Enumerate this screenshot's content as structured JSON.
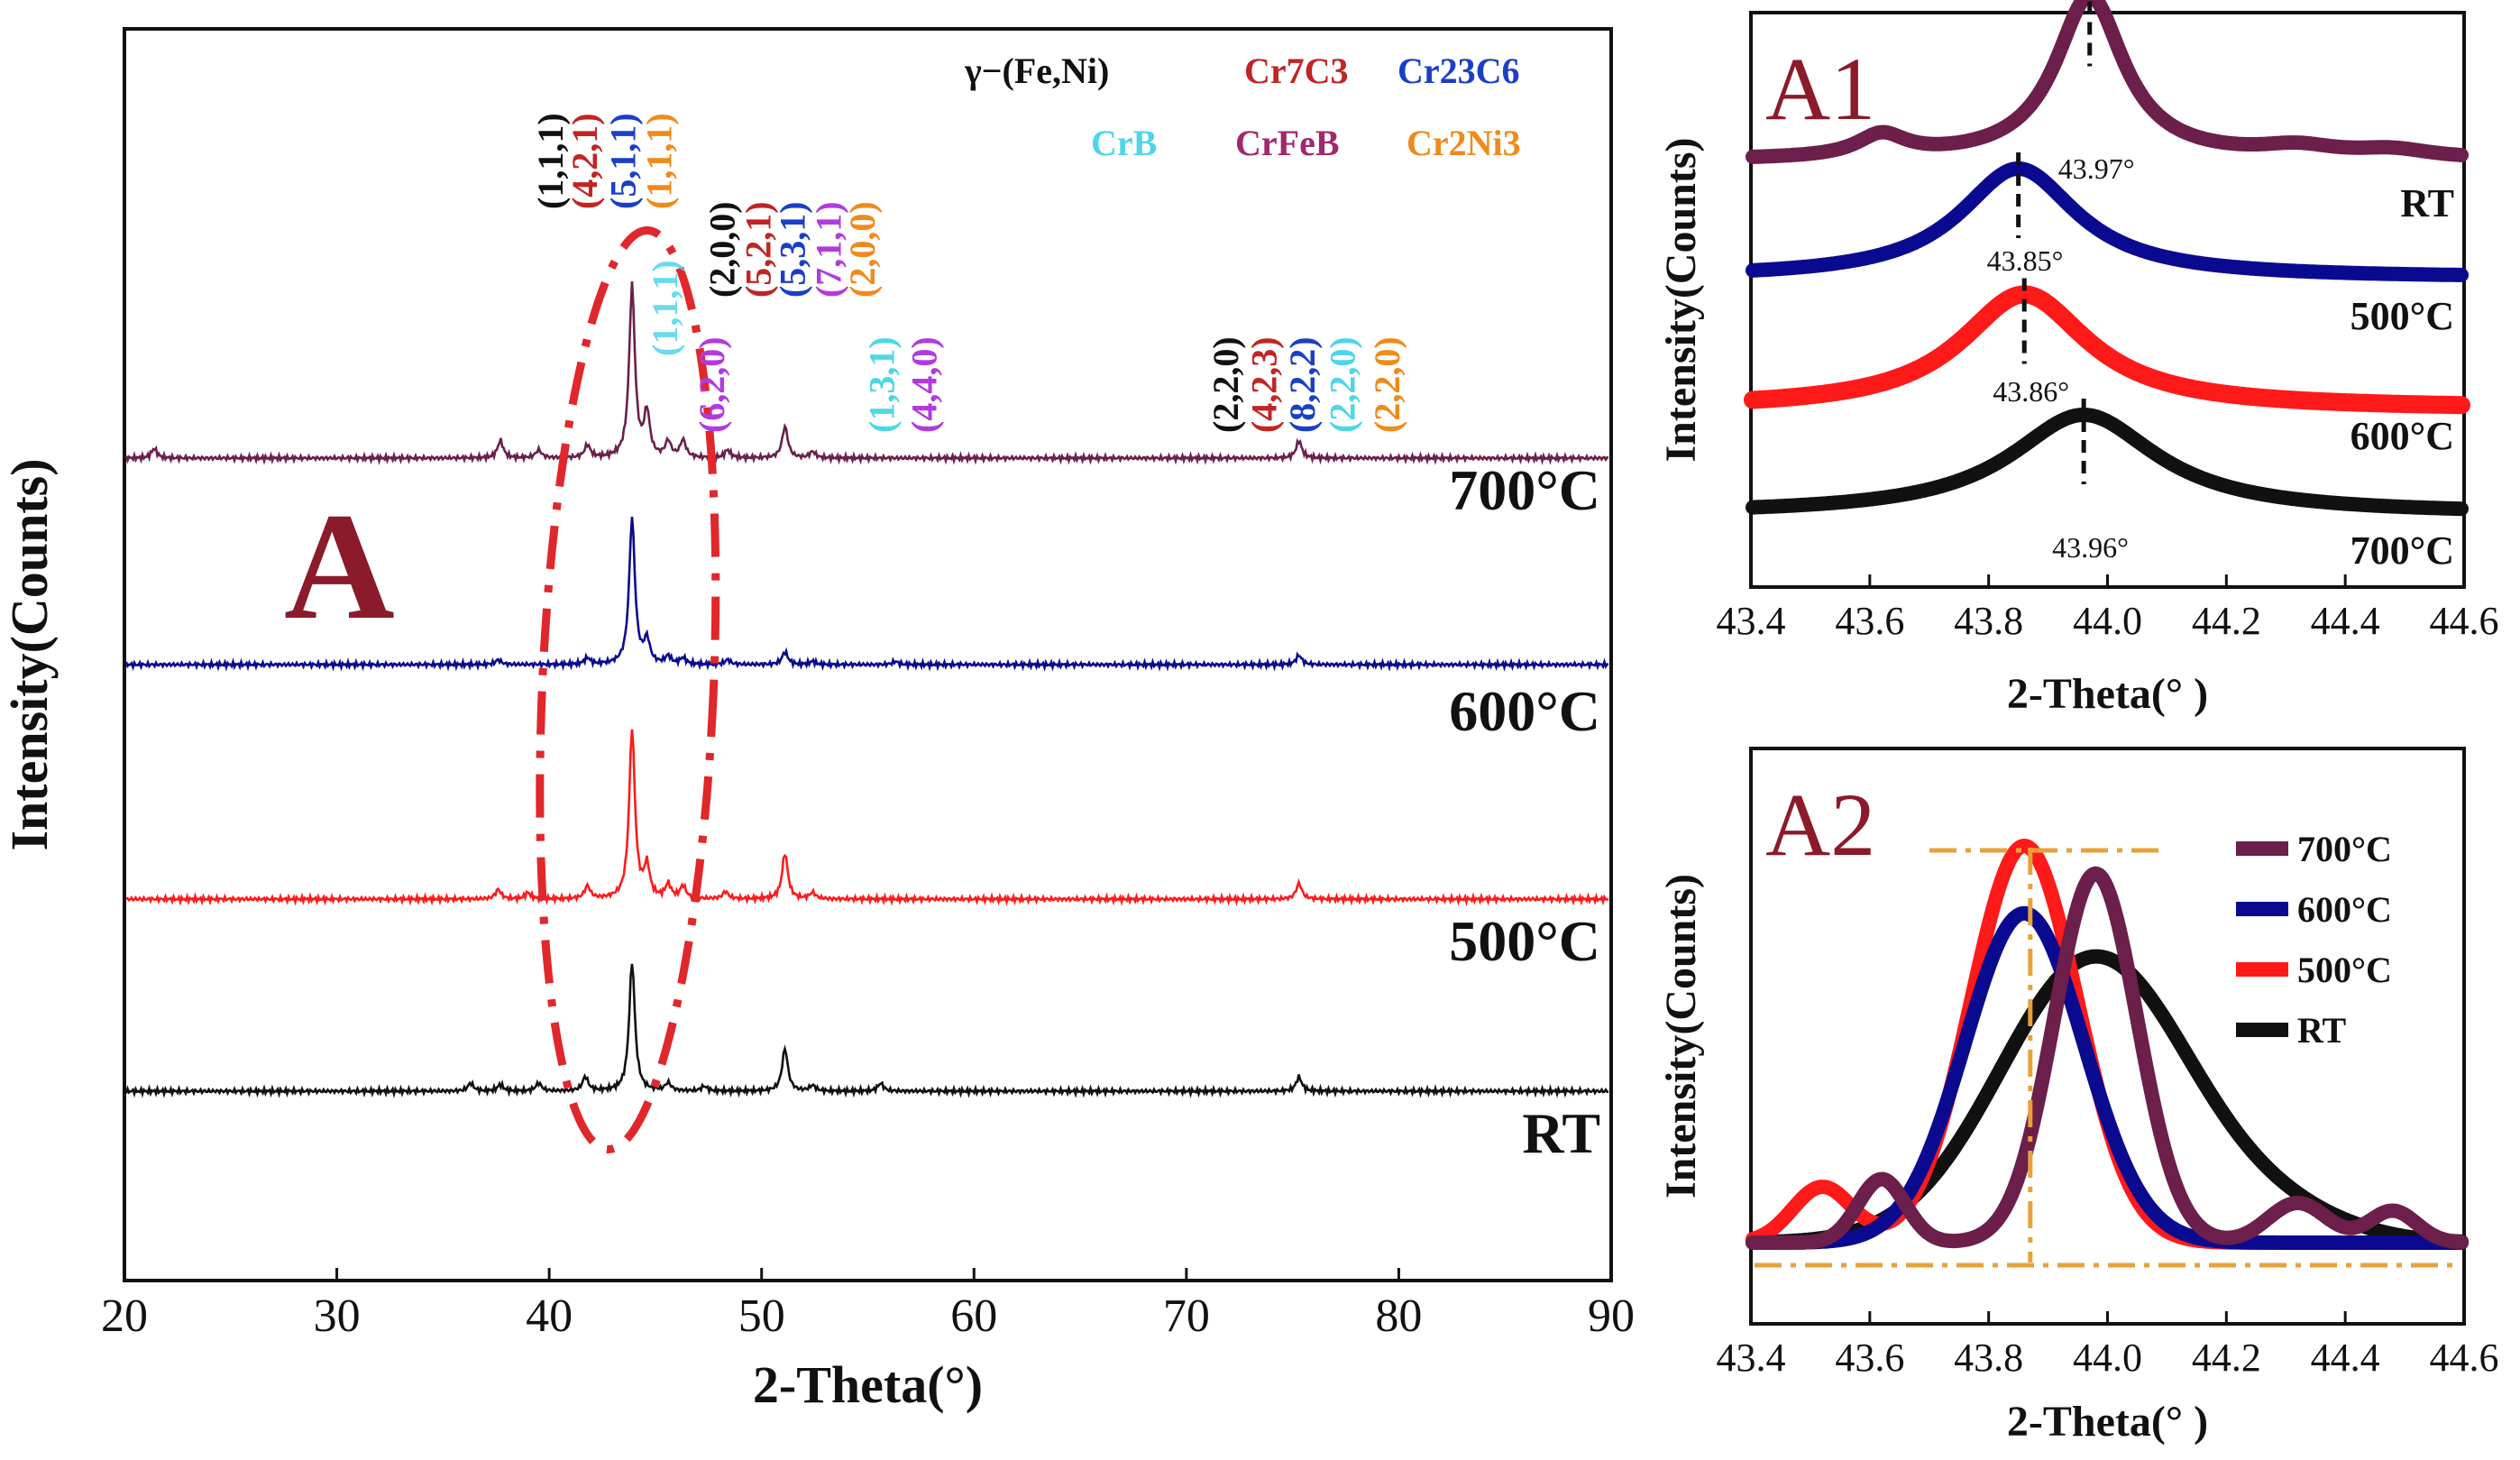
{
  "colors": {
    "axis": "#111111",
    "panel_letter": "#8b1a2a",
    "ellipse": "#e0272b",
    "guide": "#e8a23a",
    "rt": "#111111",
    "t500": "#ff1a1a",
    "t600": "#0a0a90",
    "t700": "#6b1f4a",
    "phase_gamma": "#111111",
    "phase_cr7c3": "#c22424",
    "phase_cr23c6": "#1a3fc6",
    "phase_crb": "#4fd5e8",
    "phase_crfeb": "#a1286f",
    "phase_cr2ni3": "#f08a1a",
    "miller_violet": "#b23ae0"
  },
  "chart_data": [
    {
      "id": "A",
      "type": "line",
      "panel_label": "A",
      "xlabel": "2-Theta(°)",
      "ylabel": "Intensity(Counts)",
      "xlim": [
        20,
        90
      ],
      "xticks": [
        "20",
        "30",
        "40",
        "50",
        "60",
        "70",
        "80",
        "90"
      ],
      "grid": false,
      "series": [
        {
          "name": "RT",
          "color": "#111111",
          "baseline": 0,
          "peaks": [
            [
              36.3,
              0.5
            ],
            [
              37.7,
              0.4
            ],
            [
              39.5,
              0.5
            ],
            [
              41.7,
              0.9
            ],
            [
              43.9,
              8.2
            ],
            [
              45.6,
              0.5
            ],
            [
              47.3,
              0.3
            ],
            [
              51.1,
              2.7
            ],
            [
              52.4,
              0.35
            ],
            [
              55.6,
              0.5
            ],
            [
              75.3,
              0.9
            ]
          ]
        },
        {
          "name": "500°C",
          "color": "#ff1a1a",
          "baseline": 1,
          "peaks": [
            [
              37.6,
              0.6
            ],
            [
              39.0,
              0.4
            ],
            [
              41.8,
              0.8
            ],
            [
              43.9,
              10.8
            ],
            [
              44.6,
              2.0
            ],
            [
              45.6,
              0.9
            ],
            [
              46.3,
              0.8
            ],
            [
              48.3,
              0.45
            ],
            [
              51.1,
              2.9
            ],
            [
              52.4,
              0.4
            ],
            [
              75.3,
              1.0
            ]
          ]
        },
        {
          "name": "600°C",
          "color": "#0a0a90",
          "baseline": 2,
          "peaks": [
            [
              37.6,
              0.3
            ],
            [
              41.8,
              0.4
            ],
            [
              43.9,
              9.3
            ],
            [
              44.6,
              1.5
            ],
            [
              45.6,
              0.5
            ],
            [
              46.3,
              0.4
            ],
            [
              48.4,
              0.3
            ],
            [
              51.1,
              0.8
            ],
            [
              52.4,
              0.2
            ],
            [
              56.3,
              0.2
            ],
            [
              75.3,
              0.6
            ]
          ]
        },
        {
          "name": "700°C",
          "color": "#6b1f4a",
          "baseline": 3,
          "peaks": [
            [
              21.4,
              0.6
            ],
            [
              37.7,
              1.1
            ],
            [
              39.5,
              0.5
            ],
            [
              41.8,
              0.8
            ],
            [
              43.9,
              10.9
            ],
            [
              44.6,
              2.8
            ],
            [
              45.6,
              1.0
            ],
            [
              46.3,
              1.1
            ],
            [
              48.4,
              0.5
            ],
            [
              51.1,
              2.0
            ],
            [
              52.4,
              0.4
            ],
            [
              75.3,
              1.1
            ]
          ]
        }
      ],
      "curve_labels": [
        "700°C",
        "600°C",
        "500°C",
        "RT"
      ],
      "phase_legend": [
        {
          "text": "γ−(Fe,Ni)",
          "color_key": "phase_gamma"
        },
        {
          "text": "Cr7C3",
          "color_key": "phase_cr7c3"
        },
        {
          "text": "Cr23C6",
          "color_key": "phase_cr23c6"
        },
        {
          "text": "CrB",
          "color_key": "phase_crb"
        },
        {
          "text": "CrFeB",
          "color_key": "phase_crfeb"
        },
        {
          "text": "Cr2Ni3",
          "color_key": "phase_cr2ni3"
        }
      ],
      "miller_labels": [
        {
          "text": "(1,1,1)",
          "x": 40.3,
          "color_key": "phase_gamma"
        },
        {
          "text": "(4,2,1)",
          "x": 41.9,
          "color_key": "phase_cr7c3"
        },
        {
          "text": "(5,1,1)",
          "x": 43.7,
          "color_key": "phase_cr23c6"
        },
        {
          "text": "(1,1,1)",
          "x": 45.4,
          "color_key": "phase_cr2ni3"
        },
        {
          "text": "(1,1,1)",
          "x": 45.6,
          "color_key": "phase_crb"
        },
        {
          "text": "(6,2,0)",
          "x": 47.8,
          "color_key": "miller_violet"
        },
        {
          "text": "(2,0,0)",
          "x": 48.3,
          "color_key": "phase_gamma"
        },
        {
          "text": "(5,2,1)",
          "x": 50.0,
          "color_key": "phase_cr7c3"
        },
        {
          "text": "(5,3,1)",
          "x": 51.6,
          "color_key": "phase_cr23c6"
        },
        {
          "text": "(7,1,1)",
          "x": 53.3,
          "color_key": "miller_violet"
        },
        {
          "text": "(2,0,0)",
          "x": 54.9,
          "color_key": "phase_cr2ni3"
        },
        {
          "text": "(1,3,1)",
          "x": 55.8,
          "color_key": "phase_crb"
        },
        {
          "text": "(4,4,0)",
          "x": 57.8,
          "color_key": "miller_violet"
        },
        {
          "text": "(2,2,0)",
          "x": 72.0,
          "color_key": "phase_gamma"
        },
        {
          "text": "(4,2,3)",
          "x": 73.8,
          "color_key": "phase_cr7c3"
        },
        {
          "text": "(8,2,2)",
          "x": 75.6,
          "color_key": "phase_cr23c6"
        },
        {
          "text": "(2,2,0)",
          "x": 77.5,
          "color_key": "phase_crb"
        },
        {
          "text": "(2,2,0)",
          "x": 79.6,
          "color_key": "phase_cr2ni3"
        }
      ]
    },
    {
      "id": "A1",
      "type": "line",
      "panel_label": "A1",
      "xlabel": "2-Theta(°  )",
      "ylabel": "Intensity(Counts)",
      "xlim": [
        43.4,
        44.6
      ],
      "xticks": [
        "43.4",
        "43.6",
        "43.8",
        "44.0",
        "44.2",
        "44.4",
        "44.6"
      ],
      "grid": false,
      "series": [
        {
          "name": "RT",
          "color": "#111111",
          "peak": 43.96,
          "peak_label": "43.96°",
          "baseline": 0,
          "height": 1.0,
          "width": 0.15
        },
        {
          "name": "500°C",
          "color": "#ff1a1a",
          "peak": 43.86,
          "peak_label": "43.86°",
          "baseline": 1,
          "height": 1.15,
          "width": 0.13
        },
        {
          "name": "600°C",
          "color": "#0a0a90",
          "peak": 43.85,
          "peak_label": "43.85°",
          "baseline": 2,
          "height": 1.1,
          "width": 0.12
        },
        {
          "name": "700°C",
          "color": "#6b1f4a",
          "peak": 43.97,
          "peak_label": "43.97°",
          "baseline": 3,
          "height": 1.65,
          "width": 0.07
        }
      ],
      "curve_labels": [
        "700°C",
        "600°C",
        "500°C",
        "RT"
      ]
    },
    {
      "id": "A2",
      "type": "line",
      "panel_label": "A2",
      "xlabel": "2-Theta(°  )",
      "ylabel": "Intensity(Counts)",
      "xlim": [
        43.4,
        44.6
      ],
      "xticks": [
        "43.4",
        "43.6",
        "43.8",
        "44.0",
        "44.2",
        "44.4",
        "44.6"
      ],
      "grid": false,
      "reference_x": 43.87,
      "legend_position": "top-right",
      "series": [
        {
          "name": "700°C",
          "color": "#6b1f4a",
          "peak": 43.98,
          "height": 0.93,
          "width": 0.07
        },
        {
          "name": "600°C",
          "color": "#0a0a90",
          "peak": 43.86,
          "height": 0.83,
          "width": 0.1
        },
        {
          "name": "500°C",
          "color": "#ff1a1a",
          "peak": 43.86,
          "height": 1.0,
          "width": 0.09
        },
        {
          "name": "RT",
          "color": "#111111",
          "peak": 43.98,
          "height": 0.72,
          "width": 0.16
        }
      ]
    }
  ]
}
